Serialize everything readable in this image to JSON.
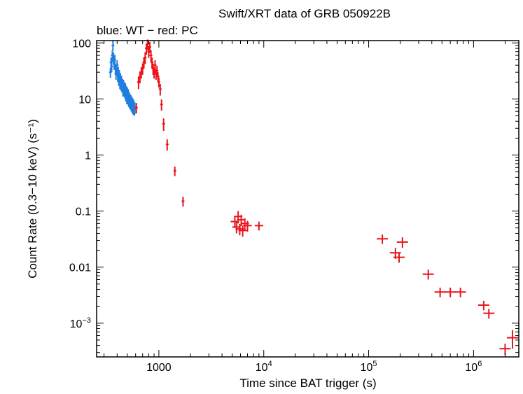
{
  "chart_data": {
    "type": "scatter",
    "title": "Swift/XRT data of GRB 050922B",
    "subtitle": "blue: WT − red: PC",
    "xlabel": "Time since BAT trigger (s)",
    "ylabel": "Count Rate (0.3−10 keV) (s⁻¹)",
    "x_scale": "log",
    "y_scale": "log",
    "xlim": [
      255,
      2700000
    ],
    "ylim": [
      0.00025,
      110
    ],
    "grid": false,
    "x_ticks": [
      {
        "value": 1000,
        "label": "1000",
        "base": "",
        "exp": ""
      },
      {
        "value": 10000,
        "label": "",
        "base": "10",
        "exp": "4"
      },
      {
        "value": 100000,
        "label": "",
        "base": "10",
        "exp": "5"
      },
      {
        "value": 1000000,
        "label": "",
        "base": "10",
        "exp": "6"
      }
    ],
    "y_ticks": [
      {
        "value": 100,
        "label": "100",
        "base": "",
        "exp": ""
      },
      {
        "value": 10,
        "label": "10",
        "base": "",
        "exp": ""
      },
      {
        "value": 1,
        "label": "1",
        "base": "",
        "exp": ""
      },
      {
        "value": 0.1,
        "label": "0.1",
        "base": "",
        "exp": ""
      },
      {
        "value": 0.01,
        "label": "0.01",
        "base": "",
        "exp": ""
      },
      {
        "value": 0.001,
        "label": "",
        "base": "10",
        "exp": "−3"
      }
    ],
    "series": [
      {
        "color": "#1f7fe0",
        "points": [
          [
            345,
            30,
            6
          ],
          [
            350,
            45,
            10
          ],
          [
            355,
            38,
            8
          ],
          [
            360,
            60,
            14
          ],
          [
            365,
            90,
            18
          ],
          [
            370,
            55,
            12
          ],
          [
            375,
            42,
            9
          ],
          [
            380,
            50,
            11
          ],
          [
            385,
            35,
            8
          ],
          [
            390,
            28,
            6
          ],
          [
            395,
            33,
            7
          ],
          [
            400,
            40,
            9
          ],
          [
            405,
            26,
            6
          ],
          [
            410,
            30,
            7
          ],
          [
            415,
            22,
            5
          ],
          [
            420,
            27,
            6
          ],
          [
            425,
            20,
            5
          ],
          [
            430,
            24,
            5
          ],
          [
            435,
            18,
            4
          ],
          [
            440,
            21,
            5
          ],
          [
            445,
            17,
            4
          ],
          [
            450,
            19,
            4
          ],
          [
            455,
            15,
            4
          ],
          [
            460,
            18,
            4
          ],
          [
            465,
            14,
            3
          ],
          [
            470,
            16,
            4
          ],
          [
            475,
            13,
            3
          ],
          [
            480,
            15,
            4
          ],
          [
            485,
            12,
            3
          ],
          [
            490,
            14,
            3
          ],
          [
            495,
            11,
            3
          ],
          [
            500,
            13,
            3
          ],
          [
            505,
            10.5,
            2.5
          ],
          [
            510,
            12,
            3
          ],
          [
            515,
            9.5,
            2.3
          ],
          [
            520,
            11,
            2.6
          ],
          [
            525,
            9,
            2.2
          ],
          [
            530,
            10,
            2.4
          ],
          [
            535,
            8.5,
            2
          ],
          [
            540,
            9.5,
            2.2
          ],
          [
            545,
            8,
            2
          ],
          [
            550,
            9,
            2.1
          ],
          [
            555,
            7.5,
            1.8
          ],
          [
            560,
            8.5,
            2
          ],
          [
            565,
            7,
            1.7
          ],
          [
            570,
            8,
            1.9
          ],
          [
            575,
            6.8,
            1.6
          ],
          [
            580,
            7.5,
            1.8
          ],
          [
            585,
            6.5,
            1.5
          ],
          [
            590,
            7,
            1.6
          ]
        ]
      },
      {
        "color": "#e8141a",
        "points": [
          [
            610,
            7,
            1.5
          ],
          [
            640,
            20,
            5
          ],
          [
            660,
            25,
            6
          ],
          [
            680,
            30,
            7
          ],
          [
            700,
            35,
            8
          ],
          [
            720,
            45,
            10
          ],
          [
            740,
            55,
            13
          ],
          [
            760,
            80,
            18
          ],
          [
            780,
            95,
            20
          ],
          [
            800,
            70,
            16
          ],
          [
            820,
            85,
            19
          ],
          [
            840,
            60,
            14
          ],
          [
            860,
            45,
            10
          ],
          [
            880,
            35,
            8
          ],
          [
            900,
            30,
            7
          ],
          [
            920,
            40,
            9
          ],
          [
            940,
            28,
            6
          ],
          [
            960,
            32,
            7
          ],
          [
            980,
            25,
            5
          ],
          [
            1000,
            20,
            4
          ],
          [
            1030,
            15,
            3.5
          ],
          [
            1060,
            8,
            1.8
          ],
          [
            1110,
            3.6,
            0.9
          ],
          [
            1200,
            1.55,
            0.35
          ],
          [
            1420,
            0.52,
            0.1
          ],
          [
            1700,
            0.15,
            0.03
          ],
          [
            5300,
            0.065,
            0.015
          ],
          [
            5500,
            0.052,
            0.012
          ],
          [
            5700,
            0.08,
            0.02
          ],
          [
            5900,
            0.048,
            0.011
          ],
          [
            6100,
            0.07,
            0.016
          ],
          [
            6300,
            0.045,
            0.01
          ],
          [
            6600,
            0.06,
            0.014
          ],
          [
            7000,
            0.055,
            0.012
          ],
          [
            9000,
            0.055,
            0.01
          ],
          [
            135000,
            0.032,
            0.006
          ],
          [
            180000,
            0.018,
            0.004
          ],
          [
            195000,
            0.015,
            0.003
          ],
          [
            210000,
            0.028,
            0.006
          ],
          [
            370000,
            0.0075,
            0.0015
          ],
          [
            480000,
            0.0036,
            0.0007
          ],
          [
            600000,
            0.0036,
            0.0007
          ],
          [
            750000,
            0.0036,
            0.0007
          ],
          [
            1250000,
            0.0021,
            0.0004
          ],
          [
            1400000,
            0.0015,
            0.0003
          ],
          [
            2000000,
            0.00035,
            8e-05
          ],
          [
            2350000,
            0.00055,
            0.0002
          ]
        ]
      }
    ]
  }
}
